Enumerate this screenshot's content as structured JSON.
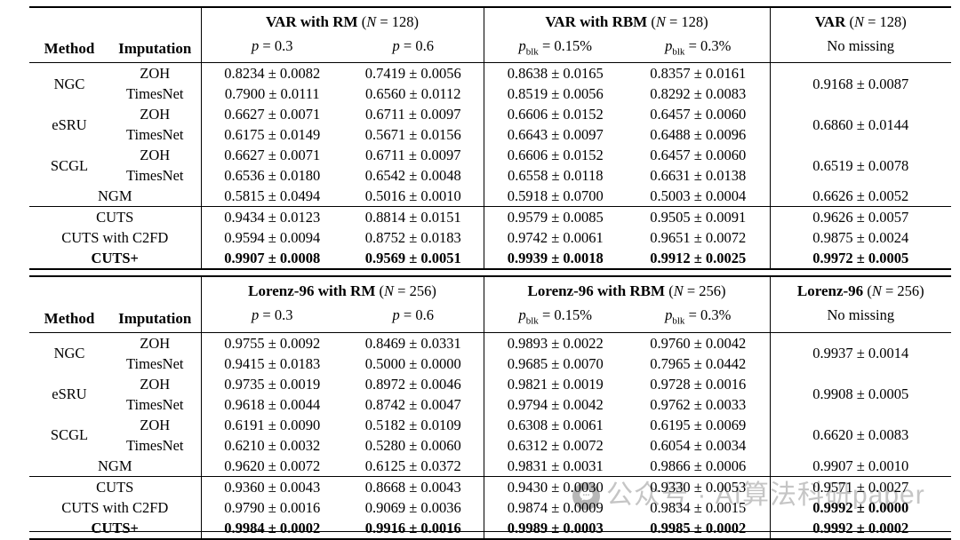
{
  "watermark": {
    "text": "公众号 · AI算法科研paper",
    "icon": "chat-bubble-icon",
    "circle_color": "#b7b7b7",
    "text_color": "#c5c5c5"
  },
  "tables": [
    {
      "header": {
        "method": "Method",
        "imputation": "Imputation",
        "groups": [
          {
            "title_bold": "VAR with RM",
            "paren_open": "(",
            "n_var": "N",
            "n_rest": " = 128)",
            "subs": [
              {
                "v": "p",
                "sub": "",
                "rest": " = 0.3"
              },
              {
                "v": "p",
                "sub": "",
                "rest": " = 0.6"
              }
            ]
          },
          {
            "title_bold": "VAR with RBM",
            "paren_open": "(",
            "n_var": "N",
            "n_rest": " = 128)",
            "subs": [
              {
                "v": "p",
                "sub": "blk",
                "rest": " = 0.15%"
              },
              {
                "v": "p",
                "sub": "blk",
                "rest": " = 0.3%"
              }
            ]
          },
          {
            "title_bold": "VAR",
            "paren_open": "(",
            "n_var": "N",
            "n_rest": " = 128)",
            "no_missing_label": "No missing"
          }
        ]
      },
      "method_sections": [
        {
          "type": "pair",
          "method": "NGC",
          "no_missing": "0.9168 ± 0.0087",
          "rows": [
            {
              "imputation": "ZOH",
              "cells": [
                "0.8234 ± 0.0082",
                "0.7419 ± 0.0056",
                "0.8638 ± 0.0165",
                "0.8357 ± 0.0161"
              ]
            },
            {
              "imputation": "TimesNet",
              "cells": [
                "0.7900 ± 0.0111",
                "0.6560 ± 0.0112",
                "0.8519 ± 0.0056",
                "0.8292 ± 0.0083"
              ]
            }
          ]
        },
        {
          "type": "pair",
          "method": "eSRU",
          "no_missing": "0.6860 ± 0.0144",
          "rows": [
            {
              "imputation": "ZOH",
              "cells": [
                "0.6627 ± 0.0071",
                "0.6711 ± 0.0097",
                "0.6606 ± 0.0152",
                "0.6457 ± 0.0060"
              ]
            },
            {
              "imputation": "TimesNet",
              "cells": [
                "0.6175 ± 0.0149",
                "0.5671 ± 0.0156",
                "0.6643 ± 0.0097",
                "0.6488 ± 0.0096"
              ]
            }
          ]
        },
        {
          "type": "pair",
          "method": "SCGL",
          "no_missing": "0.6519 ± 0.0078",
          "rows": [
            {
              "imputation": "ZOH",
              "cells": [
                "0.6627 ± 0.0071",
                "0.6711 ± 0.0097",
                "0.6606 ± 0.0152",
                "0.6457 ± 0.0060"
              ]
            },
            {
              "imputation": "TimesNet",
              "cells": [
                "0.6536 ± 0.0180",
                "0.6542 ± 0.0048",
                "0.6558 ± 0.0118",
                "0.6631 ± 0.0138"
              ]
            }
          ]
        },
        {
          "type": "single",
          "label": "NGM",
          "no_missing": "0.6626 ± 0.0052",
          "cells": [
            "0.5815 ± 0.0494",
            "0.5016 ± 0.0010",
            "0.5918 ± 0.0700",
            "0.5003 ± 0.0004"
          ]
        }
      ],
      "cuts_rows": [
        {
          "label": "CUTS",
          "bold": false,
          "bold_cells": [],
          "cells": [
            "0.9434 ± 0.0123",
            "0.8814 ± 0.0151",
            "0.9579 ± 0.0085",
            "0.9505 ± 0.0091",
            "0.9626 ± 0.0057"
          ]
        },
        {
          "label": "CUTS with C2FD",
          "bold": false,
          "bold_cells": [],
          "cells": [
            "0.9594 ± 0.0094",
            "0.8752 ± 0.0183",
            "0.9742 ± 0.0061",
            "0.9651 ± 0.0072",
            "0.9875 ± 0.0024"
          ]
        },
        {
          "label": "CUTS+",
          "bold": true,
          "bold_cells": [],
          "cells": [
            "0.9907 ± 0.0008",
            "0.9569 ± 0.0051",
            "0.9939 ± 0.0018",
            "0.9912 ± 0.0025",
            "0.9972 ± 0.0005"
          ]
        }
      ]
    },
    {
      "header": {
        "method": "Method",
        "imputation": "Imputation",
        "groups": [
          {
            "title_bold": "Lorenz-96 with RM",
            "paren_open": "(",
            "n_var": "N",
            "n_rest": " = 256)",
            "subs": [
              {
                "v": "p",
                "sub": "",
                "rest": " = 0.3"
              },
              {
                "v": "p",
                "sub": "",
                "rest": " = 0.6"
              }
            ]
          },
          {
            "title_bold": "Lorenz-96 with RBM",
            "paren_open": "(",
            "n_var": "N",
            "n_rest": " = 256)",
            "subs": [
              {
                "v": "p",
                "sub": "blk",
                "rest": " = 0.15%"
              },
              {
                "v": "p",
                "sub": "blk",
                "rest": " = 0.3%"
              }
            ]
          },
          {
            "title_bold": "Lorenz-96",
            "paren_open": "(",
            "n_var": "N",
            "n_rest": " = 256)",
            "no_missing_label": "No missing"
          }
        ]
      },
      "method_sections": [
        {
          "type": "pair",
          "method": "NGC",
          "no_missing": "0.9937 ± 0.0014",
          "rows": [
            {
              "imputation": "ZOH",
              "cells": [
                "0.9755 ± 0.0092",
                "0.8469 ± 0.0331",
                "0.9893 ± 0.0022",
                "0.9760 ± 0.0042"
              ]
            },
            {
              "imputation": "TimesNet",
              "cells": [
                "0.9415 ± 0.0183",
                "0.5000 ± 0.0000",
                "0.9685 ± 0.0070",
                "0.7965 ± 0.0442"
              ]
            }
          ]
        },
        {
          "type": "pair",
          "method": "eSRU",
          "no_missing": "0.9908 ± 0.0005",
          "rows": [
            {
              "imputation": "ZOH",
              "cells": [
                "0.9735 ± 0.0019",
                "0.8972 ± 0.0046",
                "0.9821 ± 0.0019",
                "0.9728 ± 0.0016"
              ]
            },
            {
              "imputation": "TimesNet",
              "cells": [
                "0.9618 ± 0.0044",
                "0.8742 ± 0.0047",
                "0.9794 ± 0.0042",
                "0.9762 ± 0.0033"
              ]
            }
          ]
        },
        {
          "type": "pair",
          "method": "SCGL",
          "no_missing": "0.6620 ± 0.0083",
          "rows": [
            {
              "imputation": "ZOH",
              "cells": [
                "0.6191 ± 0.0090",
                "0.5182 ± 0.0109",
                "0.6308 ± 0.0061",
                "0.6195 ± 0.0069"
              ]
            },
            {
              "imputation": "TimesNet",
              "cells": [
                "0.6210 ± 0.0032",
                "0.5280 ± 0.0060",
                "0.6312 ± 0.0072",
                "0.6054 ± 0.0034"
              ]
            }
          ]
        },
        {
          "type": "single",
          "label": "NGM",
          "no_missing": "0.9907 ± 0.0010",
          "cells": [
            "0.9620 ± 0.0072",
            "0.6125 ± 0.0372",
            "0.9831 ± 0.0031",
            "0.9866 ± 0.0006"
          ]
        }
      ],
      "cuts_rows": [
        {
          "label": "CUTS",
          "bold": false,
          "bold_cells": [],
          "cells": [
            "0.9360 ± 0.0043",
            "0.8668 ± 0.0043",
            "0.9430 ± 0.0030",
            "0.9330 ± 0.0053",
            "0.9571 ± 0.0027"
          ]
        },
        {
          "label": "CUTS with C2FD",
          "bold": false,
          "bold_cells": [
            4
          ],
          "cells": [
            "0.9790 ± 0.0016",
            "0.9069 ± 0.0036",
            "0.9874 ± 0.0009",
            "0.9834 ± 0.0015",
            "0.9992 ± 0.0000"
          ]
        },
        {
          "label": "CUTS+",
          "bold": true,
          "bold_cells": [],
          "cells": [
            "0.9984 ± 0.0002",
            "0.9916 ± 0.0016",
            "0.9989 ± 0.0003",
            "0.9985 ± 0.0002",
            "0.9992 ± 0.0002"
          ]
        }
      ]
    }
  ]
}
